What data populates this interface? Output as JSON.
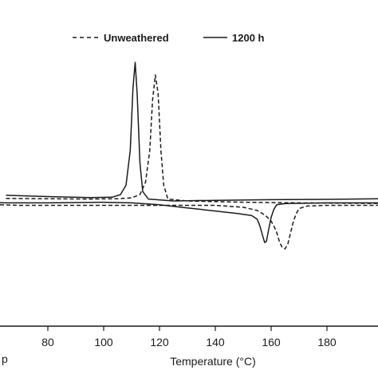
{
  "chart_data": {
    "type": "line",
    "xlabel": "Temperature (°C)",
    "ylabel_fragment": "p",
    "xlim": [
      56,
      200
    ],
    "x_ticks": [
      80,
      100,
      120,
      140,
      160,
      180
    ],
    "grid": false,
    "legend_position": "top",
    "series": [
      {
        "name": "Unweathered",
        "style": "dashed",
        "heating": [
          [
            65,
            0.4
          ],
          [
            80,
            0.35
          ],
          [
            95,
            0.3
          ],
          [
            105,
            0.35
          ],
          [
            110,
            0.5
          ],
          [
            113,
            1.0
          ],
          [
            115,
            3.0
          ],
          [
            116.5,
            8.0
          ],
          [
            117.5,
            16.0
          ],
          [
            118.5,
            20.0
          ],
          [
            119.5,
            17.0
          ],
          [
            120.5,
            8.0
          ],
          [
            121.5,
            2.5
          ],
          [
            123,
            0.3
          ],
          [
            130,
            0.0
          ],
          [
            150,
            -0.2
          ],
          [
            170,
            -0.3
          ],
          [
            200,
            -0.4
          ]
        ],
        "cooling": [
          [
            56,
            -0.6
          ],
          [
            62,
            -0.6
          ],
          [
            70,
            -0.7
          ],
          [
            100,
            -0.7
          ],
          [
            140,
            -0.7
          ],
          [
            150,
            -1.0
          ],
          [
            155,
            -1.5
          ],
          [
            158,
            -2.3
          ],
          [
            160,
            -3.2
          ],
          [
            161,
            -4.0
          ],
          [
            162,
            -5.0
          ],
          [
            163,
            -6.5
          ],
          [
            164,
            -7.4
          ],
          [
            165,
            -7.6
          ],
          [
            166,
            -6.8
          ],
          [
            167,
            -5.0
          ],
          [
            168,
            -3.2
          ],
          [
            169,
            -2.0
          ],
          [
            170,
            -1.2
          ],
          [
            173,
            -0.8
          ],
          [
            180,
            -0.7
          ],
          [
            200,
            -0.7
          ]
        ]
      },
      {
        "name": "1200 h",
        "style": "solid",
        "heating": [
          [
            65,
            0.9
          ],
          [
            80,
            0.7
          ],
          [
            95,
            0.55
          ],
          [
            103,
            0.6
          ],
          [
            106,
            1.0
          ],
          [
            108,
            2.5
          ],
          [
            109.5,
            8.0
          ],
          [
            110.5,
            18.0
          ],
          [
            111.3,
            22.0
          ],
          [
            112,
            17.0
          ],
          [
            113,
            6.0
          ],
          [
            114,
            1.5
          ],
          [
            116,
            0.3
          ],
          [
            125,
            0.0
          ],
          [
            140,
            0.1
          ],
          [
            160,
            0.2
          ],
          [
            180,
            0.25
          ],
          [
            200,
            0.35
          ]
        ],
        "cooling": [
          [
            56,
            -0.2
          ],
          [
            65,
            -0.3
          ],
          [
            80,
            -0.3
          ],
          [
            100,
            -0.2
          ],
          [
            110,
            -0.3
          ],
          [
            120,
            -0.6
          ],
          [
            130,
            -1.1
          ],
          [
            140,
            -1.6
          ],
          [
            148,
            -2.0
          ],
          [
            153,
            -2.3
          ],
          [
            155,
            -2.9
          ],
          [
            156,
            -4.0
          ],
          [
            157,
            -5.6
          ],
          [
            157.7,
            -6.6
          ],
          [
            158.3,
            -6.4
          ],
          [
            159,
            -4.8
          ],
          [
            160,
            -2.6
          ],
          [
            161,
            -1.3
          ],
          [
            162,
            -0.6
          ],
          [
            165,
            -0.4
          ],
          [
            180,
            -0.3
          ],
          [
            200,
            -0.3
          ]
        ]
      }
    ]
  }
}
